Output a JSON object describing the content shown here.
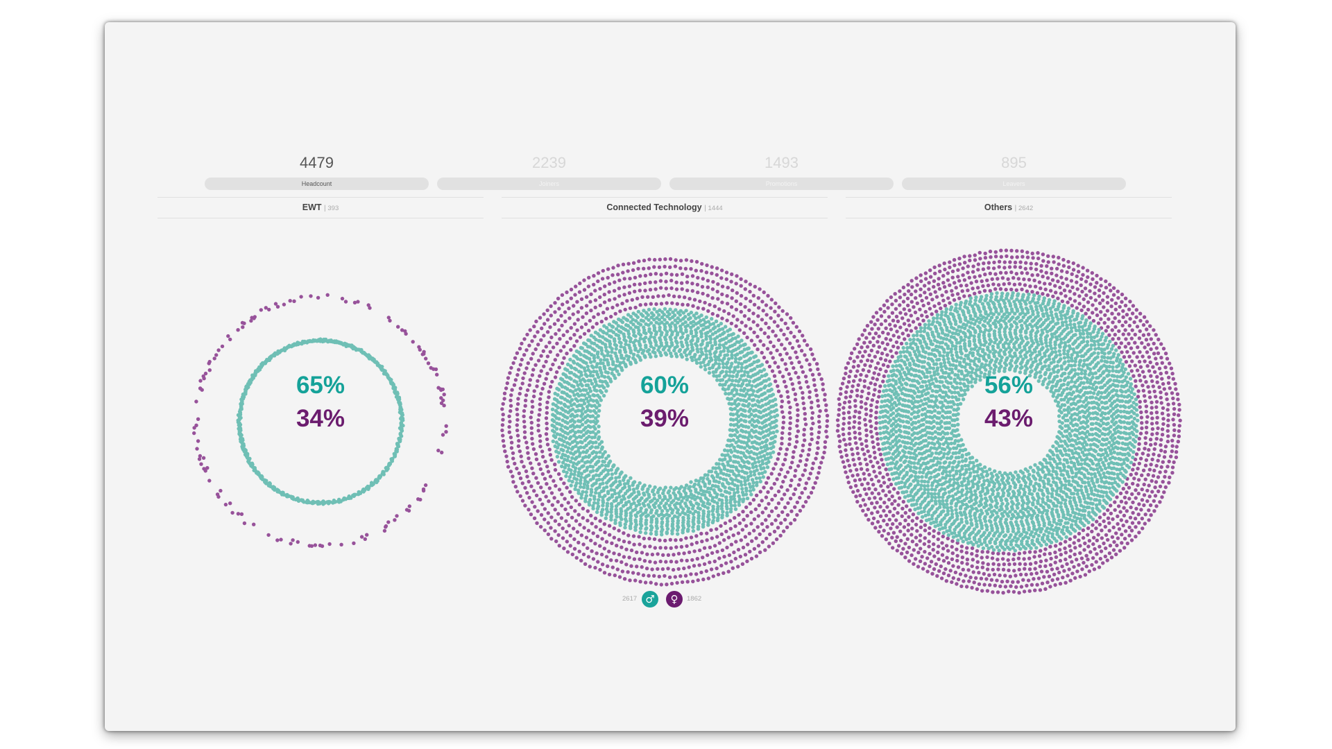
{
  "colors": {
    "male": "#6fbfb5",
    "female": "#97529a",
    "male_text": "#15a299",
    "female_text": "#6b1c6e",
    "male_icon": "#1aa39a",
    "female_icon": "#6b1b6f"
  },
  "metrics": [
    {
      "value": "4479",
      "label": "Headcount",
      "active": true
    },
    {
      "value": "2239",
      "label": "Joiners",
      "active": false
    },
    {
      "value": "1493",
      "label": "Promotions",
      "active": false
    },
    {
      "value": "895",
      "label": "Leavers",
      "active": false
    }
  ],
  "chart_data": [
    {
      "type": "dot-ring",
      "title": "EWT",
      "total": "393",
      "male_pct": "65%",
      "female_pct": "34%",
      "male_share": 0.65,
      "female_share": 0.34
    },
    {
      "type": "dot-ring",
      "title": "Connected Technology",
      "total": "1444",
      "male_pct": "60%",
      "female_pct": "39%",
      "male_share": 0.6,
      "female_share": 0.39
    },
    {
      "type": "dot-ring",
      "title": "Others",
      "total": "2642",
      "male_pct": "56%",
      "female_pct": "43%",
      "male_share": 0.56,
      "female_share": 0.43
    }
  ],
  "legend": {
    "male_count": "2617",
    "female_count": "1862",
    "male_icon": "male-symbol-icon",
    "female_icon": "female-symbol-icon",
    "male_glyph": "♂",
    "female_glyph": "♀"
  }
}
